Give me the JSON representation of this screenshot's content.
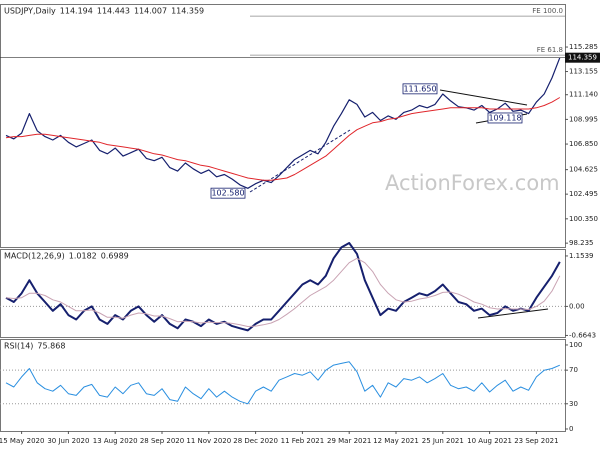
{
  "watermark": "ActionForex.com",
  "chart_data": [
    {
      "type": "line",
      "title": "USDJPY,Daily",
      "quote": [
        114.194,
        114.443,
        114.007,
        114.359
      ],
      "last": 114.359,
      "categories": [
        null,
        null,
        "15 May 2020",
        null,
        null,
        null,
        null,
        null,
        "30 Jun 2020",
        null,
        null,
        null,
        null,
        null,
        "13 Aug 2020",
        null,
        null,
        null,
        null,
        null,
        "28 Sep 2020",
        null,
        null,
        null,
        null,
        null,
        "11 Nov 2020",
        null,
        null,
        null,
        null,
        null,
        "28 Dec 2020",
        null,
        null,
        null,
        null,
        null,
        "11 Feb 2021",
        null,
        null,
        null,
        null,
        null,
        "29 Mar 2021",
        null,
        null,
        null,
        null,
        null,
        "12 May 2021",
        null,
        null,
        null,
        null,
        null,
        "25 Jun 2021",
        null,
        null,
        null,
        null,
        null,
        "10 Aug 2021",
        null,
        null,
        null,
        null,
        null,
        "23 Sep 2021",
        null,
        null,
        null
      ],
      "series": [
        {
          "color": "#16206e",
          "values": [
            107.6,
            107.3,
            107.8,
            109.5,
            108.0,
            107.5,
            107.2,
            107.6,
            107.0,
            106.6,
            106.9,
            107.2,
            106.3,
            106.0,
            106.5,
            105.8,
            106.1,
            106.4,
            105.6,
            105.4,
            105.7,
            104.8,
            104.5,
            105.2,
            104.7,
            104.3,
            104.6,
            104.0,
            104.2,
            103.8,
            103.3,
            103.0,
            103.4,
            103.7,
            103.5,
            104.1,
            104.8,
            105.5,
            105.9,
            106.3,
            106.0,
            107.0,
            108.4,
            109.5,
            110.7,
            110.3,
            109.2,
            109.6,
            108.9,
            109.3,
            109.0,
            109.6,
            109.8,
            110.2,
            110.0,
            110.3,
            111.2,
            110.6,
            110.1,
            110.0,
            109.8,
            110.2,
            109.6,
            109.9,
            110.4,
            109.7,
            109.8,
            109.5,
            110.5,
            111.2,
            112.6,
            114.359
          ]
        },
        {
          "color": "#e0262b",
          "values": [
            107.4,
            107.5,
            107.5,
            107.6,
            107.7,
            107.7,
            107.6,
            107.5,
            107.4,
            107.3,
            107.2,
            107.1,
            107.0,
            106.8,
            106.7,
            106.6,
            106.5,
            106.4,
            106.2,
            106.0,
            105.9,
            105.7,
            105.5,
            105.4,
            105.2,
            105.0,
            104.9,
            104.7,
            104.5,
            104.3,
            104.1,
            103.9,
            103.8,
            103.7,
            103.7,
            103.8,
            103.9,
            104.2,
            104.6,
            105.0,
            105.4,
            105.8,
            106.4,
            107.0,
            107.6,
            108.1,
            108.4,
            108.7,
            108.8,
            109.0,
            109.1,
            109.3,
            109.5,
            109.6,
            109.7,
            109.8,
            109.9,
            110.0,
            110.0,
            110.0,
            110.0,
            110.0,
            109.9,
            109.9,
            109.9,
            109.9,
            109.9,
            109.9,
            110.0,
            110.2,
            110.5,
            110.9
          ]
        }
      ],
      "ylim": [
        97.9,
        118.94
      ],
      "yticks": [
        115.285,
        113.155,
        {
          "value": 111.14,
          "label": "111.140"
        },
        108.995,
        {
          "value": 106.85,
          "label": "106.850"
        },
        104.625,
        102.495,
        {
          "value": 100.35,
          "label": "100.350"
        },
        98.235
      ],
      "levels": [
        {
          "label": "FE 100.0",
          "value": 117.97
        },
        {
          "label": "FE 61.8",
          "value": 114.58
        }
      ],
      "annotations": [
        {
          "value": 111.65,
          "label": "111.650"
        },
        {
          "value": 102.58,
          "label": "102.580"
        },
        {
          "value": 109.118,
          "label": "109.118"
        }
      ]
    },
    {
      "type": "line",
      "title": "MACD(12,26,9)",
      "quote": [
        1.0182,
        0.6989
      ],
      "series": [
        {
          "color": "#16206e",
          "values": [
            0.2,
            0.1,
            0.3,
            0.6,
            0.3,
            0.1,
            -0.1,
            0.05,
            -0.2,
            -0.3,
            -0.1,
            0.0,
            -0.3,
            -0.4,
            -0.2,
            -0.3,
            -0.1,
            0.0,
            -0.2,
            -0.35,
            -0.2,
            -0.4,
            -0.5,
            -0.3,
            -0.35,
            -0.45,
            -0.3,
            -0.4,
            -0.35,
            -0.45,
            -0.5,
            -0.55,
            -0.4,
            -0.3,
            -0.3,
            -0.1,
            0.1,
            0.3,
            0.5,
            0.6,
            0.5,
            0.7,
            1.1,
            1.35,
            1.45,
            1.2,
            0.6,
            0.2,
            -0.2,
            -0.05,
            -0.1,
            0.1,
            0.2,
            0.3,
            0.25,
            0.35,
            0.5,
            0.3,
            0.1,
            0.05,
            -0.1,
            -0.05,
            -0.2,
            -0.15,
            0.0,
            -0.1,
            -0.05,
            -0.1,
            0.2,
            0.45,
            0.7,
            1.0182
          ]
        },
        {
          "color": "#c9a3b3",
          "values": [
            0.2,
            0.18,
            0.2,
            0.3,
            0.3,
            0.25,
            0.15,
            0.1,
            0.0,
            -0.1,
            -0.1,
            -0.08,
            -0.15,
            -0.25,
            -0.25,
            -0.27,
            -0.2,
            -0.15,
            -0.17,
            -0.22,
            -0.22,
            -0.28,
            -0.35,
            -0.34,
            -0.35,
            -0.38,
            -0.36,
            -0.37,
            -0.37,
            -0.39,
            -0.42,
            -0.46,
            -0.45,
            -0.42,
            -0.38,
            -0.3,
            -0.18,
            -0.05,
            0.1,
            0.25,
            0.35,
            0.45,
            0.6,
            0.8,
            1.0,
            1.1,
            1.0,
            0.8,
            0.5,
            0.3,
            0.15,
            0.1,
            0.12,
            0.17,
            0.2,
            0.25,
            0.32,
            0.33,
            0.28,
            0.2,
            0.1,
            0.05,
            -0.03,
            -0.06,
            -0.05,
            -0.06,
            -0.06,
            -0.07,
            0.0,
            0.12,
            0.35,
            0.6989
          ]
        }
      ],
      "ylim": [
        -0.7,
        1.29
      ],
      "yticks": [
        1.1539,
        {
          "value": 0,
          "label": "0.00"
        },
        -0.6643
      ],
      "levels": [
        0
      ]
    },
    {
      "type": "line",
      "title": "RSI(14)",
      "quote": [
        75.868
      ],
      "series": [
        {
          "color": "#2a8fe0",
          "values": [
            55,
            50,
            62,
            72,
            55,
            48,
            45,
            52,
            42,
            40,
            50,
            53,
            40,
            38,
            50,
            42,
            52,
            55,
            42,
            40,
            48,
            35,
            33,
            50,
            42,
            36,
            48,
            38,
            45,
            38,
            33,
            30,
            45,
            50,
            45,
            58,
            62,
            66,
            64,
            68,
            58,
            70,
            76,
            78,
            80,
            68,
            45,
            52,
            38,
            55,
            50,
            60,
            58,
            62,
            55,
            60,
            66,
            52,
            48,
            50,
            45,
            55,
            44,
            52,
            58,
            45,
            50,
            46,
            62,
            70,
            72,
            75.868
          ]
        }
      ],
      "ylim": [
        -2.4,
        105.9
      ],
      "yticks": [
        100,
        70,
        30,
        0
      ],
      "levels": [
        70,
        30
      ]
    }
  ]
}
